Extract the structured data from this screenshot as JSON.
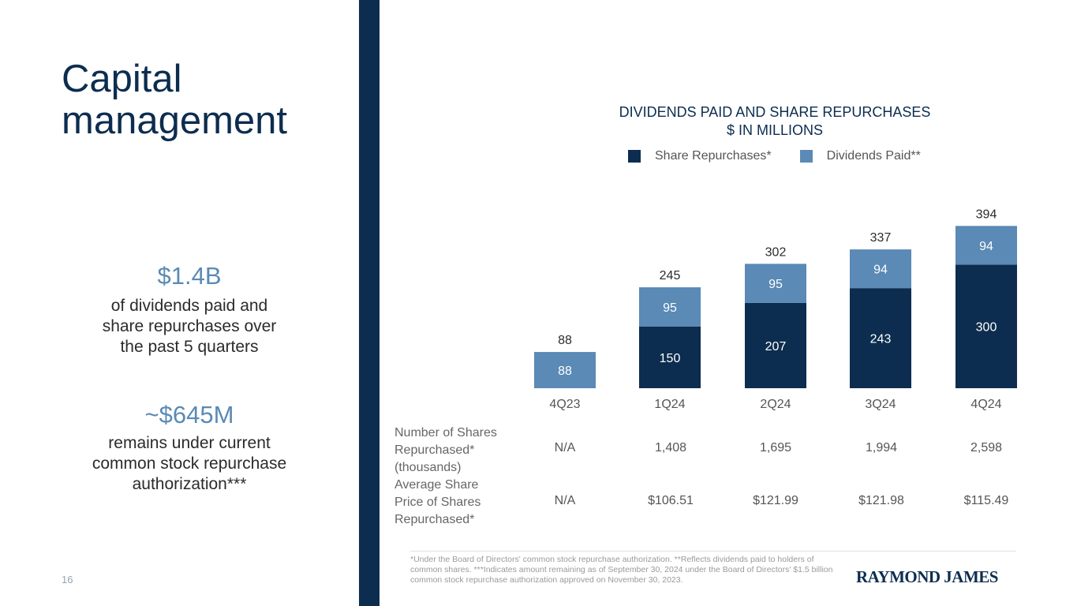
{
  "slide": {
    "title_line1": "Capital",
    "title_line2": "management",
    "page_number": "16"
  },
  "stats": [
    {
      "value": "$1.4B",
      "desc_lines": [
        "of dividends paid and",
        "share repurchases over",
        "the past 5 quarters"
      ]
    },
    {
      "value": "~$645M",
      "desc_lines": [
        "remains under current",
        "common stock repurchase",
        "authorization***"
      ]
    }
  ],
  "chart_data": {
    "type": "bar",
    "stacked": true,
    "title": "DIVIDENDS PAID AND SHARE REPURCHASES",
    "subtitle": "$ IN MILLIONS",
    "categories": [
      "4Q23",
      "1Q24",
      "2Q24",
      "3Q24",
      "4Q24"
    ],
    "series": [
      {
        "name": "Share Repurchases*",
        "color": "#0c2d4f",
        "values": [
          0,
          150,
          207,
          243,
          300
        ]
      },
      {
        "name": "Dividends Paid**",
        "color": "#5a8ab5",
        "values": [
          88,
          95,
          95,
          94,
          94
        ]
      }
    ],
    "totals": [
      88,
      245,
      302,
      337,
      394
    ],
    "ylim": [
      0,
      420
    ]
  },
  "table": {
    "rows": [
      {
        "label_lines": [
          "Number of Shares",
          "Repurchased*",
          "(thousands)"
        ],
        "values": [
          "N/A",
          "1,408",
          "1,695",
          "1,994",
          "2,598"
        ]
      },
      {
        "label_lines": [
          "Average Share",
          "Price of Shares",
          "Repurchased*"
        ],
        "values": [
          "N/A",
          "$106.51",
          "$121.99",
          "$121.98",
          "$115.49"
        ]
      }
    ]
  },
  "footnote": "*Under the Board of Directors' common stock repurchase authorization. **Reflects dividends paid to holders of common shares. ***Indicates amount remaining as of September 30, 2024 under the Board of Directors' $1.5 billion common stock repurchase authorization approved on November 30, 2023.",
  "logo_text": "RAYMOND JAMES"
}
